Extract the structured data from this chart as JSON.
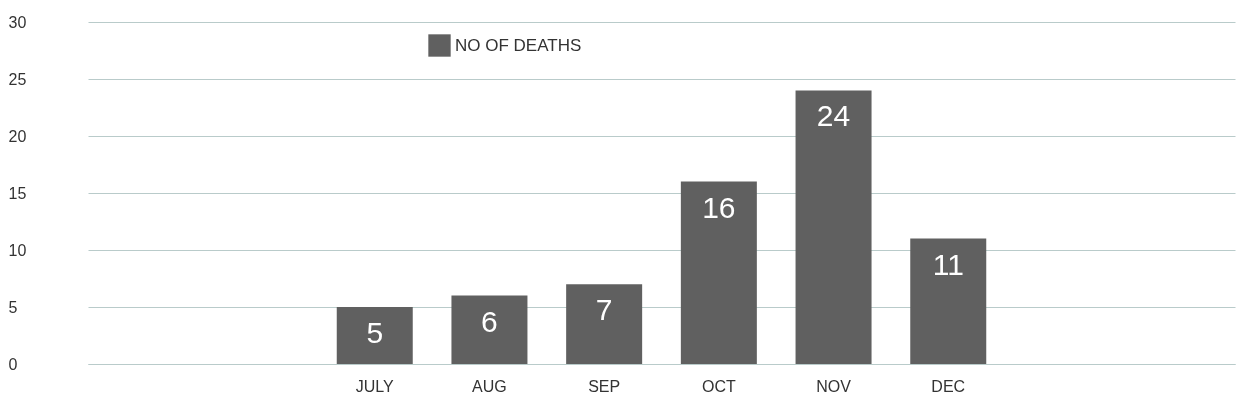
{
  "chart_data": {
    "type": "bar",
    "categories": [
      null,
      null,
      "JULY",
      "AUG",
      "SEP",
      "OCT",
      "NOV",
      "DEC",
      null,
      null
    ],
    "series": [
      {
        "name": "NO OF DEATHS",
        "color": "#606060",
        "values": [
          null,
          null,
          5,
          6,
          7,
          16,
          24,
          11,
          null,
          null
        ]
      }
    ],
    "ylim": [
      0,
      30
    ],
    "yticks": [
      0,
      5,
      10,
      15,
      20,
      25,
      30
    ],
    "grid": "y",
    "legend": "top left",
    "data_labels": true
  }
}
